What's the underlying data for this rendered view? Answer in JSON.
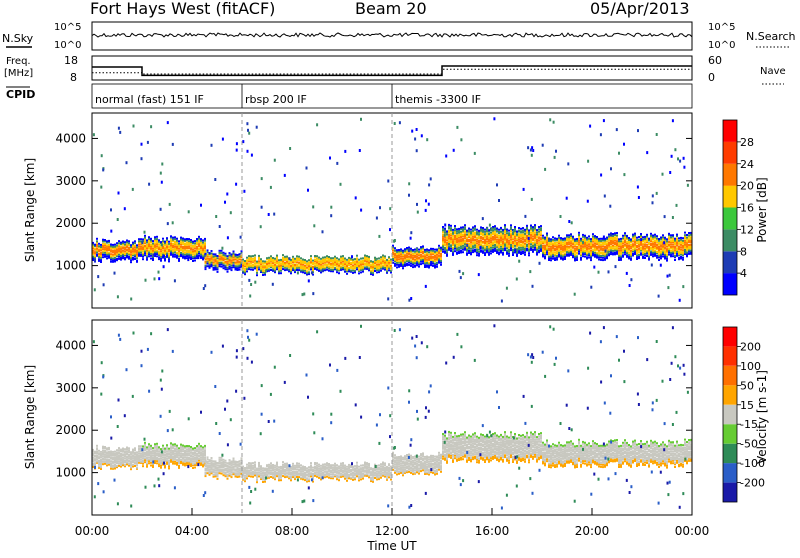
{
  "header": {
    "title": "Fort Hays West (fitACF)",
    "beam": "Beam 20",
    "date": "05/Apr/2013"
  },
  "top_panels": {
    "nsky_label": "N.Sky",
    "nsky_ticks": [
      "10^5",
      "10^0"
    ],
    "nsearch_label": "N.Search",
    "nsearch_ticks": [
      "10^5",
      "10^0"
    ],
    "freq_label_line1": "Freq.",
    "freq_label_line2": "[MHz]",
    "freq_ticks": [
      "18",
      "8"
    ],
    "nave_label": "Nave",
    "nave_ticks": [
      "60",
      "0"
    ],
    "cpid_label": "CPID",
    "cpid_segments": [
      {
        "label": "normal (fast) 151 IF",
        "start_hour": 0
      },
      {
        "label": "rbsp 200 IF",
        "start_hour": 6
      },
      {
        "label": "themis -3300 IF",
        "start_hour": 12
      }
    ]
  },
  "chart_data": [
    {
      "type": "heatmap",
      "name": "power-panel",
      "ylabel": "Slant Range [km]",
      "xlabel": "",
      "ylim": [
        0,
        4600
      ],
      "yticks": [
        1000,
        2000,
        3000,
        4000
      ],
      "xlim": [
        0,
        24
      ],
      "colorbar_label": "Power [dB]",
      "colorbar_ticks": [
        "4",
        "8",
        "12",
        "16",
        "20",
        "24",
        "28"
      ],
      "colors": [
        "#0000ff",
        "#1e3cb4",
        "#3c8c64",
        "#3cc83c",
        "#ffc800",
        "#ff7800",
        "#ff3c00",
        "#ff0000"
      ],
      "bands": [
        {
          "t": [
            0,
            2
          ],
          "center": 1400,
          "width": 450
        },
        {
          "t": [
            2,
            4.5
          ],
          "center": 1450,
          "width": 500
        },
        {
          "t": [
            4.5,
            6
          ],
          "center": 1150,
          "width": 400
        },
        {
          "t": [
            6,
            12
          ],
          "center": 1050,
          "width": 350
        },
        {
          "t": [
            12,
            14
          ],
          "center": 1250,
          "width": 450
        },
        {
          "t": [
            14,
            18
          ],
          "center": 1650,
          "width": 650
        },
        {
          "t": [
            18,
            24
          ],
          "center": 1500,
          "width": 550
        }
      ]
    },
    {
      "type": "heatmap",
      "name": "velocity-panel",
      "ylabel": "Slant Range [km]",
      "xlabel": "Time UT",
      "ylim": [
        0,
        4600
      ],
      "yticks": [
        1000,
        2000,
        3000,
        4000
      ],
      "xlim": [
        0,
        24
      ],
      "xticks": [
        "00:00",
        "04:00",
        "08:00",
        "12:00",
        "16:00",
        "20:00",
        "00:00"
      ],
      "colorbar_label": "Velocity [m s-1]",
      "colorbar_ticks": [
        "200",
        "100",
        "50",
        "15",
        "-15",
        "-50",
        "-100",
        "-200"
      ],
      "colors": [
        "#1a1aa8",
        "#2a5ec8",
        "#2e8b57",
        "#66cc33",
        "#c8c8c0",
        "#ffa500",
        "#ff7000",
        "#ff3000",
        "#ff0000"
      ],
      "bands": [
        {
          "t": [
            0,
            2
          ],
          "center": 1400,
          "width": 450
        },
        {
          "t": [
            2,
            4.5
          ],
          "center": 1450,
          "width": 500
        },
        {
          "t": [
            4.5,
            6
          ],
          "center": 1150,
          "width": 400
        },
        {
          "t": [
            6,
            12
          ],
          "center": 1050,
          "width": 350
        },
        {
          "t": [
            12,
            14
          ],
          "center": 1250,
          "width": 450
        },
        {
          "t": [
            14,
            18
          ],
          "center": 1650,
          "width": 650
        },
        {
          "t": [
            18,
            24
          ],
          "center": 1500,
          "width": 550
        }
      ]
    }
  ],
  "freq_series": {
    "hours": [
      0,
      2,
      2,
      14,
      14,
      24
    ],
    "mhz": [
      14.5,
      14.5,
      10.3,
      10.3,
      15,
      15
    ]
  },
  "nave_series": {
    "hours": [
      0,
      2,
      2,
      14,
      14,
      24
    ],
    "value": [
      22,
      22,
      18,
      18,
      32,
      32
    ]
  }
}
